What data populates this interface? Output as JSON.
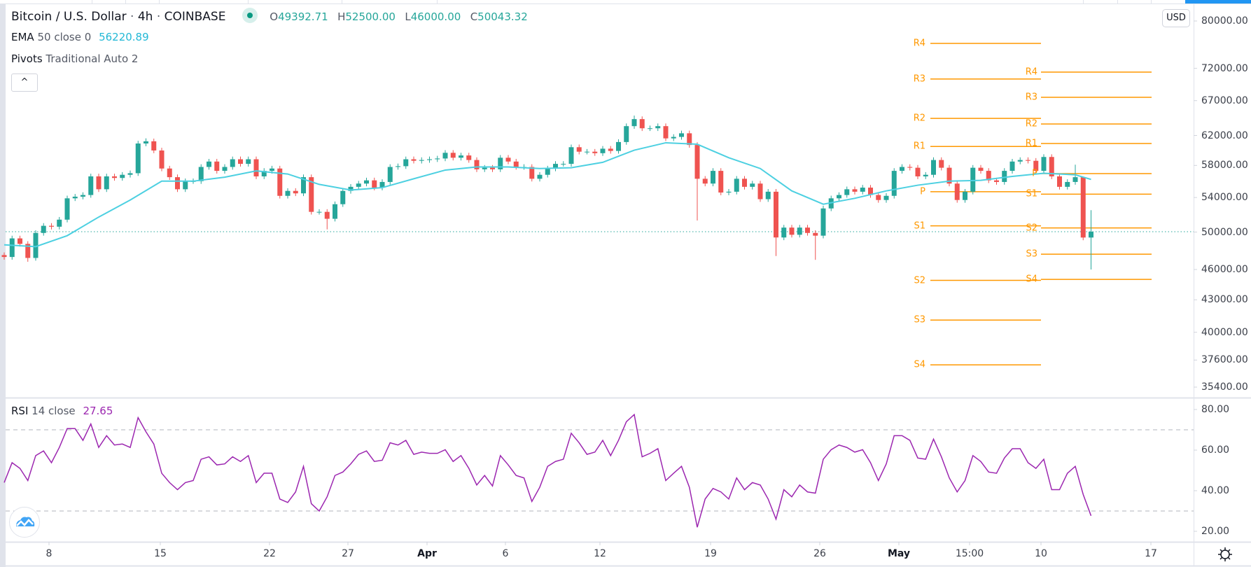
{
  "header": {
    "symbol": "Bitcoin / U.S. Dollar",
    "interval": "4h",
    "exchange": "COINBASE",
    "separator": "·",
    "ohlc": {
      "o_label": "O",
      "o": "49392.71",
      "h_label": "H",
      "h": "52500.00",
      "l_label": "L",
      "l": "46000.00",
      "c_label": "C",
      "c": "50043.32"
    },
    "market_status_icon": "market-open-dot"
  },
  "indicators": {
    "ema": {
      "name": "EMA",
      "params": "50 close 0",
      "value": "56220.89"
    },
    "pivots": {
      "name": "Pivots",
      "params": "Traditional Auto 2"
    },
    "rsi": {
      "name": "RSI",
      "params": "14 close",
      "value": "27.65"
    }
  },
  "controls": {
    "collapse_icon": "chevron-up-icon",
    "collapse_glyph": "^",
    "currency": "USD",
    "settings_icon": "gear-icon"
  },
  "colors": {
    "up": "#26a69a",
    "down": "#ef5350",
    "ema": "#4dd0e1",
    "rsi": "#9c27b0",
    "pivot": "#ff9800",
    "price_line": "#26a69a",
    "accent": "#2196f3"
  },
  "chart_data": [
    {
      "type": "candlestick",
      "title": "Bitcoin / U.S. Dollar · 4h · COINBASE",
      "scale": "log",
      "ylim": [
        35400,
        80000
      ],
      "price_ticks": [
        "80000.00",
        "72000.00",
        "67000.00",
        "62000.00",
        "58000.00",
        "54000.00",
        "50000.00",
        "46000.00",
        "43000.00",
        "40000.00",
        "37600.00",
        "35400.00"
      ],
      "x_ticks": [
        "8",
        "15",
        "22",
        "27",
        "Apr",
        "6",
        "12",
        "19",
        "26",
        "May",
        "15:00",
        "10",
        "17"
      ],
      "x_ticks_bold": [
        "Apr",
        "May"
      ],
      "grid": false,
      "first_open": 47500,
      "closes": [
        47300,
        49300,
        48700,
        47200,
        49900,
        50700,
        50600,
        51400,
        53900,
        54100,
        54300,
        56600,
        55000,
        56600,
        56400,
        56800,
        57000,
        60900,
        61200,
        59960,
        57600,
        56500,
        55000,
        56000,
        56000,
        57800,
        58500,
        57300,
        57800,
        58800,
        58200,
        58800,
        56600,
        57300,
        57600,
        54200,
        54800,
        54500,
        56500,
        52300,
        52300,
        51500,
        53200,
        54800,
        55300,
        55700,
        56100,
        55200,
        55900,
        57800,
        57900,
        58800,
        58600,
        58700,
        58800,
        58900,
        59650,
        59000,
        59300,
        58700,
        57500,
        57700,
        57500,
        59000,
        58500,
        57800,
        57800,
        56300,
        56800,
        57600,
        58200,
        58200,
        60400,
        59800,
        59800,
        59600,
        60200,
        59900,
        61100,
        63300,
        64300,
        63000,
        63000,
        63300,
        61600,
        61800,
        62300,
        60700,
        56300,
        55700,
        57300,
        54600,
        54700,
        56300,
        55300,
        55700,
        53800,
        54700,
        49400,
        50500,
        49700,
        50500,
        49900,
        49600,
        52700,
        53900,
        54300,
        55000,
        54700,
        55200,
        54300,
        53700,
        54200,
        57300,
        57800,
        57700,
        56600,
        56800,
        58700,
        57700,
        55700,
        53700,
        54700,
        57700,
        57300,
        56100,
        55900,
        57300,
        58500,
        58700,
        58600,
        57300,
        59100,
        56600,
        55300,
        55900,
        56500,
        49392.71,
        50043.32
      ],
      "highs": {
        "18": 61600,
        "80": 64800,
        "136": 58100,
        "137": 54900,
        "138": 52500
      },
      "lows": {
        "3": 46800,
        "41": 50300,
        "88": 51300,
        "98": 47400,
        "103": 47000,
        "138": 46000
      },
      "last_price": 50043.32,
      "ema50": [
        [
          0,
          48600
        ],
        [
          4,
          48400
        ],
        [
          8,
          49600
        ],
        [
          12,
          51700
        ],
        [
          16,
          53700
        ],
        [
          20,
          56000
        ],
        [
          24,
          56000
        ],
        [
          28,
          56500
        ],
        [
          32,
          57300
        ],
        [
          36,
          56900
        ],
        [
          40,
          55600
        ],
        [
          44,
          54900
        ],
        [
          48,
          55200
        ],
        [
          52,
          56300
        ],
        [
          56,
          57400
        ],
        [
          60,
          57800
        ],
        [
          64,
          57800
        ],
        [
          68,
          57600
        ],
        [
          72,
          57700
        ],
        [
          76,
          58400
        ],
        [
          80,
          60000
        ],
        [
          84,
          61000
        ],
        [
          88,
          60800
        ],
        [
          92,
          59000
        ],
        [
          96,
          57600
        ],
        [
          100,
          54800
        ],
        [
          104,
          53200
        ],
        [
          108,
          53900
        ],
        [
          112,
          54800
        ],
        [
          116,
          55500
        ],
        [
          120,
          56000
        ],
        [
          124,
          56100
        ],
        [
          128,
          56600
        ],
        [
          132,
          57000
        ],
        [
          136,
          56800
        ],
        [
          138,
          56220.89
        ]
      ],
      "pivots": [
        {
          "levels": [
            {
              "label": "R4",
              "value": 76100
            },
            {
              "label": "R3",
              "value": 70300
            },
            {
              "label": "R2",
              "value": 64400
            },
            {
              "label": "R1",
              "value": 60500
            },
            {
              "label": "P",
              "value": 54700
            },
            {
              "label": "S1",
              "value": 50700
            },
            {
              "label": "S2",
              "value": 44900
            },
            {
              "label": "S3",
              "value": 41100
            },
            {
              "label": "S4",
              "value": 37200
            }
          ]
        },
        {
          "levels": [
            {
              "label": "R4",
              "value": 71400
            },
            {
              "label": "R3",
              "value": 67500
            },
            {
              "label": "R2",
              "value": 63600
            },
            {
              "label": "R1",
              "value": 60900
            },
            {
              "label": "P",
              "value": 56950
            },
            {
              "label": "S1",
              "value": 54400
            },
            {
              "label": "S2",
              "value": 50460
            },
            {
              "label": "S3",
              "value": 47600
            },
            {
              "label": "S4",
              "value": 45000
            }
          ]
        }
      ]
    },
    {
      "type": "line",
      "title": "RSI 14 close",
      "ylim": [
        20,
        80
      ],
      "y_ticks": [
        "80.00",
        "60.00",
        "40.00",
        "20.00"
      ],
      "bands": [
        70,
        30
      ],
      "values": [
        44,
        53.8,
        51,
        45,
        57.3,
        59.6,
        53.8,
        61.3,
        70.6,
        70.6,
        64.8,
        72.9,
        61.3,
        67.1,
        62.5,
        63,
        61.3,
        76,
        69,
        63,
        48.6,
        44,
        40.5,
        44,
        45,
        55.5,
        56.7,
        52.7,
        53.2,
        56.7,
        54.4,
        57.3,
        44,
        48.6,
        48.6,
        35.9,
        34.2,
        39.4,
        52,
        33.6,
        30,
        37,
        47.5,
        49.2,
        53.2,
        57.9,
        59.6,
        54.4,
        55,
        63.6,
        62.5,
        64.8,
        57.9,
        59,
        58.4,
        58.4,
        60.2,
        54.4,
        57.3,
        51,
        42.8,
        47.5,
        42.3,
        57.3,
        52.7,
        47.5,
        46.3,
        34.7,
        41.7,
        52,
        54.4,
        55.5,
        68.3,
        63.6,
        57.9,
        59,
        64.8,
        57.3,
        64.8,
        74,
        77.5,
        56.7,
        58.4,
        60.7,
        45,
        48.6,
        52,
        41.7,
        22,
        35.9,
        41.1,
        39.4,
        35.9,
        46.3,
        40.5,
        44,
        42.8,
        35.9,
        26,
        40.5,
        37,
        42.8,
        39.4,
        38.8,
        55.5,
        60.2,
        62.5,
        61.3,
        59,
        60.2,
        53.8,
        45,
        53.2,
        67.1,
        67.1,
        64.8,
        56.1,
        55.5,
        65.4,
        56.7,
        46.3,
        39.4,
        45,
        57.3,
        54.4,
        49.2,
        48.6,
        56.1,
        60.7,
        60.7,
        53.8,
        51,
        55.5,
        40.5,
        40.5,
        48.6,
        52,
        38.2,
        27.65
      ]
    }
  ]
}
